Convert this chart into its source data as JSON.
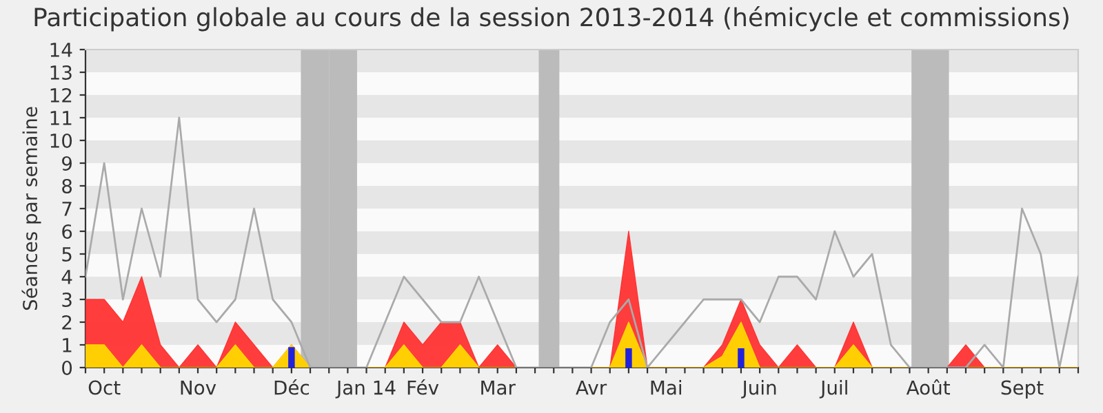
{
  "chart_data": {
    "type": "area",
    "title": "Participation globale au cours de la session 2013-2014 (hémicycle et commissions)",
    "ylabel": "Séances par semaine",
    "categories": [
      null,
      "Oct",
      null,
      null,
      null,
      null,
      "Nov",
      null,
      null,
      null,
      null,
      "Déc",
      null,
      null,
      null,
      "Jan 14",
      null,
      null,
      "Fév",
      null,
      null,
      null,
      "Mar",
      null,
      null,
      null,
      null,
      "Avr",
      null,
      null,
      null,
      "Mai",
      null,
      null,
      null,
      null,
      "Juin",
      null,
      null,
      null,
      "Juil",
      null,
      null,
      null,
      null,
      "Août",
      null,
      null,
      null,
      null,
      "Sept",
      null,
      null,
      null
    ],
    "series": [
      {
        "type": "line",
        "color": "#aaaaaa",
        "values": [
          4,
          9,
          3,
          7,
          4,
          11,
          3,
          2,
          3,
          7,
          3,
          2,
          0,
          0,
          0,
          0,
          2,
          4,
          3,
          2,
          2,
          4,
          2,
          0,
          0,
          0,
          0,
          0,
          2,
          3,
          0,
          1,
          2,
          3,
          3,
          3,
          2,
          4,
          4,
          3,
          6,
          4,
          5,
          1,
          0,
          0,
          0,
          0,
          1,
          0,
          7,
          5,
          0,
          4
        ]
      },
      {
        "color": "#ff3333",
        "values": [
          3,
          3,
          2,
          4,
          1,
          0,
          1,
          0,
          2,
          1,
          0,
          1,
          0,
          0,
          0,
          0,
          0,
          2,
          1,
          2,
          2,
          0,
          1,
          0,
          0,
          0,
          0,
          0,
          0,
          6,
          0,
          0,
          0,
          0,
          1,
          3,
          1,
          0,
          1,
          0,
          0,
          2,
          0,
          0,
          0,
          0,
          0,
          1,
          0,
          0,
          0,
          0,
          0,
          0
        ]
      },
      {
        "color": "#ffd700",
        "values": [
          1,
          1,
          0,
          1,
          0,
          0,
          0,
          0,
          1,
          0,
          0,
          1,
          0,
          0,
          0,
          0,
          0,
          1,
          0,
          0,
          1,
          0,
          0,
          0,
          0,
          0,
          0,
          0,
          0,
          2,
          0,
          0,
          0,
          0,
          0.5,
          2,
          0,
          0,
          0,
          0,
          0,
          1,
          0,
          0,
          0,
          0,
          0,
          0,
          0,
          0,
          0,
          0,
          0,
          0
        ]
      },
      {
        "type": "bar",
        "color": "#2222dd",
        "values": [
          null,
          null,
          null,
          null,
          null,
          null,
          null,
          null,
          null,
          null,
          null,
          0.9,
          null,
          null,
          null,
          null,
          null,
          null,
          null,
          null,
          null,
          null,
          null,
          null,
          null,
          null,
          null,
          null,
          null,
          0.85,
          null,
          null,
          null,
          null,
          null,
          0.85,
          null,
          null,
          null,
          null,
          null,
          null,
          null,
          null,
          null,
          null,
          null,
          null,
          null,
          null,
          null,
          null,
          null,
          null
        ]
      }
    ],
    "ylim": [
      0,
      14
    ],
    "yticks": [
      0,
      1,
      2,
      3,
      4,
      5,
      6,
      7,
      8,
      9,
      10,
      11,
      12,
      13,
      14
    ],
    "bands": [
      {
        "axis": "y",
        "from": 1,
        "to": 2,
        "color": "#e6e6e6"
      },
      {
        "axis": "y",
        "from": 3,
        "to": 4,
        "color": "#e6e6e6"
      },
      {
        "axis": "y",
        "from": 5,
        "to": 6,
        "color": "#e6e6e6"
      },
      {
        "axis": "y",
        "from": 7,
        "to": 8,
        "color": "#e6e6e6"
      },
      {
        "axis": "y",
        "from": 9,
        "to": 10,
        "color": "#e6e6e6"
      },
      {
        "axis": "y",
        "from": 11,
        "to": 12,
        "color": "#e6e6e6"
      },
      {
        "axis": "y",
        "from": 13,
        "to": 14,
        "color": "#e6e6e6"
      }
    ]
  }
}
